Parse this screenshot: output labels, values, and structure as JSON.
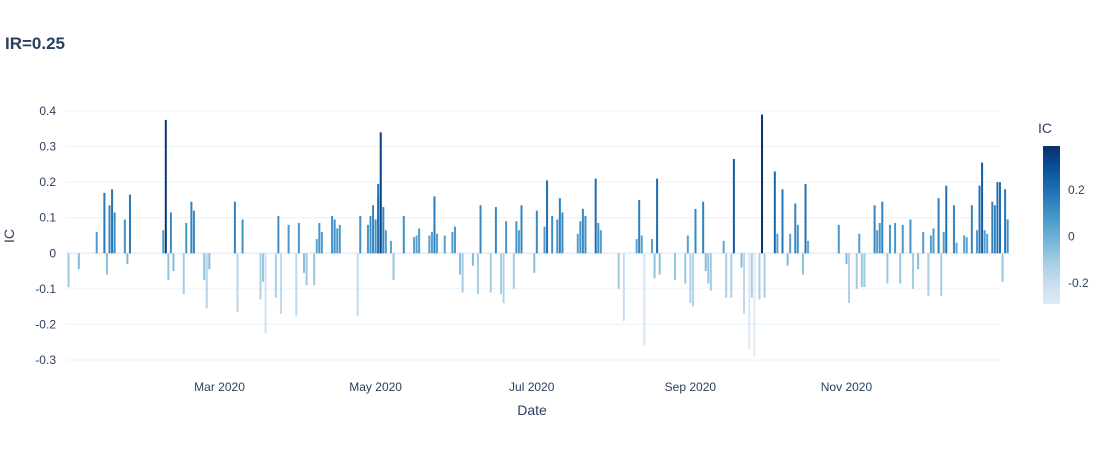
{
  "chart_data": {
    "type": "bar",
    "title": "IR=0.25",
    "xlabel": "Date",
    "ylabel": "IC",
    "x_range": [
      "2020-01-01",
      "2020-12-31"
    ],
    "x_ticks": [
      {
        "date": "2020-03-01",
        "label": "Mar 2020"
      },
      {
        "date": "2020-05-01",
        "label": "May 2020"
      },
      {
        "date": "2020-07-01",
        "label": "Jul 2020"
      },
      {
        "date": "2020-09-01",
        "label": "Sep 2020"
      },
      {
        "date": "2020-11-01",
        "label": "Nov 2020"
      }
    ],
    "ylim": [
      -0.3,
      0.4
    ],
    "y_ticks": [
      0.4,
      0.3,
      0.2,
      0.1,
      0,
      -0.1,
      -0.2,
      -0.3
    ],
    "grid": true,
    "colorbar": {
      "title": "IC",
      "range": [
        -0.29,
        0.39
      ],
      "ticks": [
        0.2,
        0,
        -0.2
      ],
      "colors": [
        "#deebf7",
        "#c6dbef",
        "#9ecae1",
        "#6baed6",
        "#4292c6",
        "#2171b5",
        "#08519c",
        "#08306b"
      ]
    },
    "series": [
      {
        "points": [
          [
            "2020-01-02",
            -0.095
          ],
          [
            "2020-01-06",
            -0.045
          ],
          [
            "2020-01-13",
            0.06
          ],
          [
            "2020-01-16",
            0.17
          ],
          [
            "2020-01-17",
            -0.06
          ],
          [
            "2020-01-18",
            0.135
          ],
          [
            "2020-01-19",
            0.18
          ],
          [
            "2020-01-20",
            0.115
          ],
          [
            "2020-01-24",
            0.095
          ],
          [
            "2020-01-25",
            -0.03
          ],
          [
            "2020-01-26",
            0.165
          ],
          [
            "2020-02-08",
            0.065
          ],
          [
            "2020-02-09",
            0.375
          ],
          [
            "2020-02-10",
            -0.075
          ],
          [
            "2020-02-11",
            0.115
          ],
          [
            "2020-02-12",
            -0.05
          ],
          [
            "2020-02-16",
            -0.115
          ],
          [
            "2020-02-17",
            0.085
          ],
          [
            "2020-02-19",
            0.145
          ],
          [
            "2020-02-20",
            0.12
          ],
          [
            "2020-02-24",
            -0.075
          ],
          [
            "2020-02-25",
            -0.155
          ],
          [
            "2020-02-26",
            -0.045
          ],
          [
            "2020-03-07",
            0.145
          ],
          [
            "2020-03-08",
            -0.165
          ],
          [
            "2020-03-10",
            0.095
          ],
          [
            "2020-03-17",
            -0.13
          ],
          [
            "2020-03-18",
            -0.08
          ],
          [
            "2020-03-19",
            -0.225
          ],
          [
            "2020-03-23",
            -0.125
          ],
          [
            "2020-03-24",
            0.105
          ],
          [
            "2020-03-25",
            -0.17
          ],
          [
            "2020-03-28",
            0.08
          ],
          [
            "2020-03-31",
            -0.175
          ],
          [
            "2020-04-01",
            0.085
          ],
          [
            "2020-04-03",
            -0.055
          ],
          [
            "2020-04-04",
            -0.09
          ],
          [
            "2020-04-07",
            -0.09
          ],
          [
            "2020-04-08",
            0.04
          ],
          [
            "2020-04-09",
            0.085
          ],
          [
            "2020-04-10",
            0.06
          ],
          [
            "2020-04-14",
            0.105
          ],
          [
            "2020-04-15",
            0.095
          ],
          [
            "2020-04-16",
            0.07
          ],
          [
            "2020-04-17",
            0.08
          ],
          [
            "2020-04-24",
            -0.175
          ],
          [
            "2020-04-25",
            0.105
          ],
          [
            "2020-04-28",
            0.08
          ],
          [
            "2020-04-29",
            0.105
          ],
          [
            "2020-04-30",
            0.135
          ],
          [
            "2020-05-01",
            0.095
          ],
          [
            "2020-05-02",
            0.155
          ],
          [
            "2020-05-02",
            0.195
          ],
          [
            "2020-05-03",
            0.34
          ],
          [
            "2020-05-04",
            0.13
          ],
          [
            "2020-05-05",
            0.065
          ],
          [
            "2020-05-07",
            0.035
          ],
          [
            "2020-05-08",
            -0.075
          ],
          [
            "2020-05-12",
            0.105
          ],
          [
            "2020-05-16",
            0.045
          ],
          [
            "2020-05-17",
            0.05
          ],
          [
            "2020-05-18",
            0.07
          ],
          [
            "2020-05-22",
            0.05
          ],
          [
            "2020-05-23",
            0.06
          ],
          [
            "2020-05-24",
            0.16
          ],
          [
            "2020-05-25",
            0.055
          ],
          [
            "2020-05-28",
            0.05
          ],
          [
            "2020-05-31",
            0.06
          ],
          [
            "2020-06-01",
            0.075
          ],
          [
            "2020-06-03",
            -0.06
          ],
          [
            "2020-06-04",
            -0.11
          ],
          [
            "2020-06-08",
            -0.035
          ],
          [
            "2020-06-10",
            -0.115
          ],
          [
            "2020-06-11",
            0.135
          ],
          [
            "2020-06-15",
            -0.11
          ],
          [
            "2020-06-17",
            0.13
          ],
          [
            "2020-06-19",
            -0.115
          ],
          [
            "2020-06-20",
            -0.14
          ],
          [
            "2020-06-21",
            0.09
          ],
          [
            "2020-06-24",
            -0.1
          ],
          [
            "2020-06-25",
            0.09
          ],
          [
            "2020-06-26",
            0.065
          ],
          [
            "2020-06-27",
            0.135
          ],
          [
            "2020-07-02",
            -0.055
          ],
          [
            "2020-07-03",
            0.12
          ],
          [
            "2020-07-06",
            0.075
          ],
          [
            "2020-07-07",
            0.205
          ],
          [
            "2020-07-09",
            0.105
          ],
          [
            "2020-07-11",
            0.095
          ],
          [
            "2020-07-12",
            0.155
          ],
          [
            "2020-07-13",
            0.115
          ],
          [
            "2020-07-19",
            0.055
          ],
          [
            "2020-07-20",
            0.09
          ],
          [
            "2020-07-21",
            0.125
          ],
          [
            "2020-07-22",
            0.105
          ],
          [
            "2020-07-26",
            0.21
          ],
          [
            "2020-07-27",
            0.085
          ],
          [
            "2020-07-28",
            0.065
          ],
          [
            "2020-08-04",
            -0.1
          ],
          [
            "2020-08-06",
            -0.19
          ],
          [
            "2020-08-11",
            0.04
          ],
          [
            "2020-08-12",
            0.15
          ],
          [
            "2020-08-13",
            0.05
          ],
          [
            "2020-08-14",
            -0.26
          ],
          [
            "2020-08-17",
            0.04
          ],
          [
            "2020-08-18",
            -0.07
          ],
          [
            "2020-08-19",
            0.21
          ],
          [
            "2020-08-20",
            -0.06
          ],
          [
            "2020-08-26",
            -0.075
          ],
          [
            "2020-08-30",
            -0.085
          ],
          [
            "2020-08-31",
            0.05
          ],
          [
            "2020-09-01",
            -0.14
          ],
          [
            "2020-09-02",
            -0.15
          ],
          [
            "2020-09-03",
            0.125
          ],
          [
            "2020-09-06",
            0.145
          ],
          [
            "2020-09-07",
            -0.05
          ],
          [
            "2020-09-08",
            -0.085
          ],
          [
            "2020-09-09",
            -0.105
          ],
          [
            "2020-09-14",
            0.035
          ],
          [
            "2020-09-15",
            -0.125
          ],
          [
            "2020-09-17",
            -0.125
          ],
          [
            "2020-09-18",
            0.265
          ],
          [
            "2020-09-21",
            -0.04
          ],
          [
            "2020-09-22",
            -0.17
          ],
          [
            "2020-09-24",
            -0.27
          ],
          [
            "2020-09-25",
            -0.125
          ],
          [
            "2020-09-26",
            -0.29
          ],
          [
            "2020-09-28",
            -0.13
          ],
          [
            "2020-09-29",
            0.39
          ],
          [
            "2020-09-30",
            -0.125
          ],
          [
            "2020-10-04",
            0.23
          ],
          [
            "2020-10-05",
            0.055
          ],
          [
            "2020-10-07",
            0.18
          ],
          [
            "2020-10-09",
            -0.035
          ],
          [
            "2020-10-10",
            0.055
          ],
          [
            "2020-10-12",
            0.14
          ],
          [
            "2020-10-13",
            0.08
          ],
          [
            "2020-10-15",
            -0.06
          ],
          [
            "2020-10-16",
            0.195
          ],
          [
            "2020-10-17",
            0.035
          ],
          [
            "2020-10-29",
            0.08
          ],
          [
            "2020-11-01",
            -0.03
          ],
          [
            "2020-11-02",
            -0.14
          ],
          [
            "2020-11-05",
            -0.1
          ],
          [
            "2020-11-06",
            0.055
          ],
          [
            "2020-11-07",
            -0.095
          ],
          [
            "2020-11-08",
            -0.095
          ],
          [
            "2020-11-12",
            0.135
          ],
          [
            "2020-11-13",
            0.065
          ],
          [
            "2020-11-14",
            0.085
          ],
          [
            "2020-11-15",
            0.145
          ],
          [
            "2020-11-17",
            -0.085
          ],
          [
            "2020-11-18",
            0.08
          ],
          [
            "2020-11-20",
            0.085
          ],
          [
            "2020-11-22",
            -0.085
          ],
          [
            "2020-11-23",
            0.08
          ],
          [
            "2020-11-26",
            0.095
          ],
          [
            "2020-11-27",
            -0.1
          ],
          [
            "2020-11-29",
            -0.045
          ],
          [
            "2020-12-01",
            0.06
          ],
          [
            "2020-12-03",
            -0.12
          ],
          [
            "2020-12-04",
            0.05
          ],
          [
            "2020-12-05",
            0.07
          ],
          [
            "2020-12-07",
            0.155
          ],
          [
            "2020-12-08",
            -0.12
          ],
          [
            "2020-12-09",
            0.06
          ],
          [
            "2020-12-10",
            0.19
          ],
          [
            "2020-12-13",
            0.135
          ],
          [
            "2020-12-14",
            0.03
          ],
          [
            "2020-12-17",
            0.05
          ],
          [
            "2020-12-18",
            0.045
          ],
          [
            "2020-12-20",
            0.135
          ],
          [
            "2020-12-22",
            0.065
          ],
          [
            "2020-12-23",
            0.19
          ],
          [
            "2020-12-24",
            0.255
          ],
          [
            "2020-12-25",
            0.065
          ],
          [
            "2020-12-26",
            0.055
          ],
          [
            "2020-12-28",
            0.145
          ],
          [
            "2020-12-29",
            0.135
          ],
          [
            "2020-12-30",
            0.2
          ],
          [
            "2020-12-31",
            0.2
          ],
          [
            "2021-01-01",
            -0.08
          ],
          [
            "2021-01-02",
            0.18
          ],
          [
            "2021-01-03",
            0.095
          ]
        ]
      }
    ]
  }
}
